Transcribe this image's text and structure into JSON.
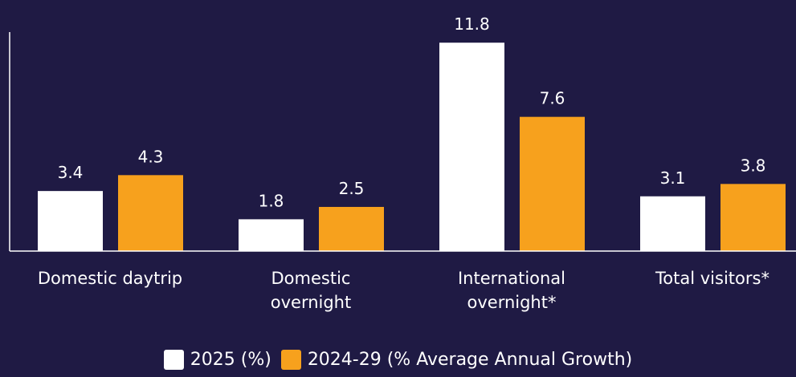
{
  "chart_data": {
    "type": "bar",
    "categories": [
      "Domestic daytrip",
      "Domestic overnight",
      "International overnight*",
      "Total visitors*"
    ],
    "series": [
      {
        "name": "2025 (%)",
        "color": "#ffffff",
        "values": [
          3.4,
          1.8,
          11.8,
          3.1
        ]
      },
      {
        "name": "2024-29 (% Average Annual Growth)",
        "color": "#f7a11d",
        "values": [
          4.3,
          2.5,
          7.6,
          3.8
        ]
      }
    ],
    "ylim": [
      0,
      12.4
    ]
  }
}
